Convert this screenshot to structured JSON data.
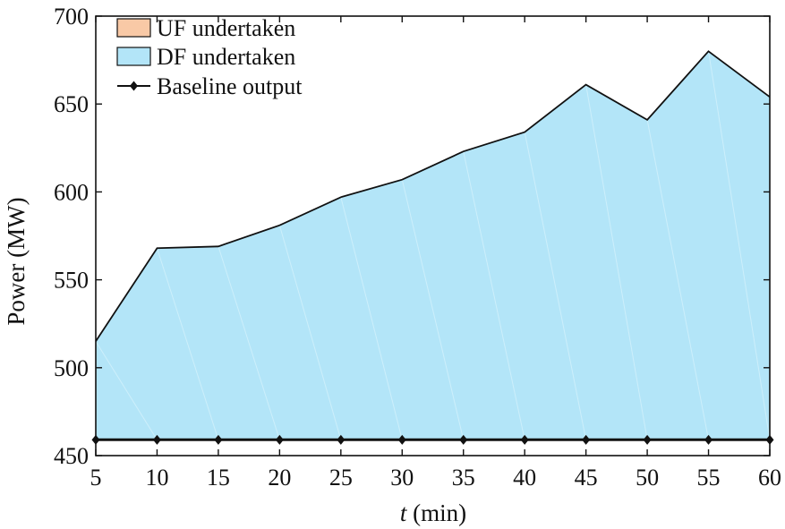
{
  "chart_data": {
    "type": "area",
    "title": "",
    "xlabel_italic": "t",
    "xlabel_rest": " (min)",
    "ylabel": "Power (MW)",
    "xlim": [
      5,
      60
    ],
    "ylim": [
      450,
      700
    ],
    "x_ticks": [
      5,
      10,
      15,
      20,
      25,
      30,
      35,
      40,
      45,
      50,
      55,
      60
    ],
    "y_ticks": [
      450,
      500,
      550,
      600,
      650,
      700
    ],
    "grid": false,
    "legend_position": "top-left",
    "x": [
      5,
      10,
      15,
      20,
      25,
      30,
      35,
      40,
      45,
      50,
      55,
      60
    ],
    "series": [
      {
        "name": "UF undertaken",
        "kind": "area",
        "color": "#f9c9a6",
        "values": [
          0,
          0,
          0,
          0,
          0,
          0,
          0,
          0,
          0,
          0,
          0,
          0
        ]
      },
      {
        "name": "DF undertaken",
        "kind": "area",
        "color": "#b3e5f8",
        "values": [
          515,
          568,
          569,
          581,
          597,
          607,
          623,
          634,
          661,
          641,
          680,
          654
        ]
      },
      {
        "name": "Baseline output",
        "kind": "line-marker",
        "color": "#111111",
        "values": [
          459,
          459,
          459,
          459,
          459,
          459,
          459,
          459,
          459,
          459,
          459,
          459
        ]
      }
    ]
  }
}
